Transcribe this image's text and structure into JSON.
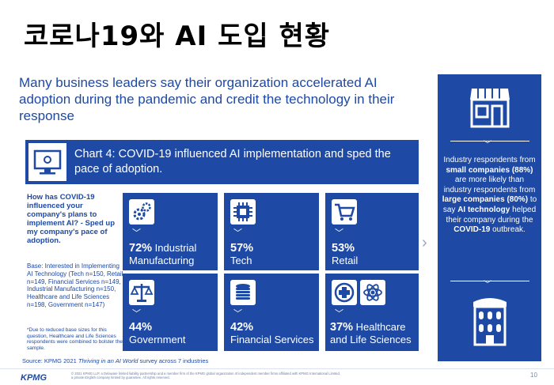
{
  "slide_title": "코로나19와 AI 도입 현황",
  "headline": "Many business leaders say their organization accelerated AI adoption during the pandemic and credit the technology in their response",
  "chart_title": "Chart 4: COVID-19 influenced AI implementation and sped the pace of adoption.",
  "question": "How has COVID-19 influenced your company's plans to implement AI? - Sped up my company's pace of adoption.",
  "base": "Base: Interested in Implementing AI Technology (Tech n=150, Retail n=149, Financial Services n=149, Industrial Manufacturing n=150, Healthcare and Life Sciences n=198, Government n=147)",
  "note": "*Due to reduced base sizes for this question, Healthcare and Life Sciences respondents were combined to bolster the sample.",
  "tiles": [
    {
      "value": "72%",
      "label": "Industrial Manufacturing",
      "icon": "gears-icon"
    },
    {
      "value": "57%",
      "label": "Tech",
      "icon": "chip-icon"
    },
    {
      "value": "53%",
      "label": "Retail",
      "icon": "cart-icon"
    },
    {
      "value": "44%",
      "label": "Government",
      "icon": "scales-icon"
    },
    {
      "value": "42%",
      "label": "Financial Services",
      "icon": "coins-icon"
    },
    {
      "value": "37%",
      "label": "Healthcare and Life Sciences",
      "icon": "medical-icon"
    }
  ],
  "right_panel": {
    "p1": "Industry respondents from ",
    "b1": "small companies (88%)",
    "p2": " are more likely than industry respondents from ",
    "b2": "large companies (80%)",
    "p3": " to say ",
    "b3": "AI technology",
    "p4": " helped their company during the ",
    "b4": "COVID-19",
    "p5": " outbreak."
  },
  "source_prefix": "Source: KPMG 2021 ",
  "source_italic": "Thriving in an AI World",
  "source_suffix": " survey across 7 industries",
  "logo_text": "KPMG",
  "legal": "© 2021 KPMG LLP, a Delaware limited liability partnership and a member firm of the KPMG global organization of independent member firms affiliated with KPMG International Limited, a private English company limited by guarantee. All rights reserved.",
  "page_number": "10",
  "colors": {
    "brand_blue": "#1e49a4",
    "white": "#ffffff"
  }
}
